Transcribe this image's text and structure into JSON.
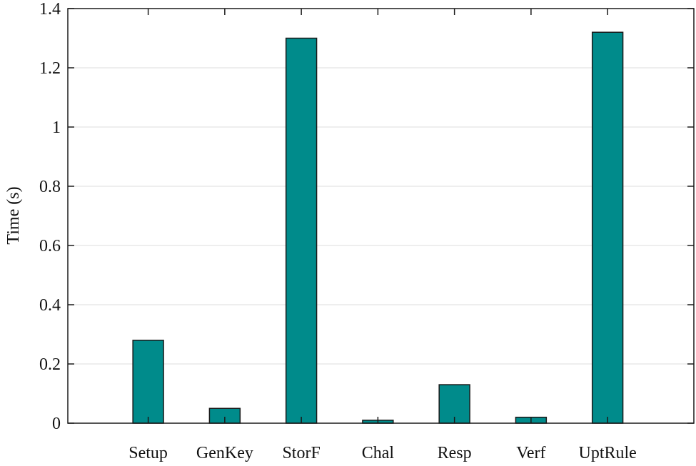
{
  "chart_data": {
    "type": "bar",
    "title": "",
    "xlabel": "",
    "ylabel": "Time (s)",
    "categories": [
      "Setup",
      "GenKey",
      "StorF",
      "Chal",
      "Resp",
      "Verf",
      "UptRule"
    ],
    "values": [
      0.28,
      0.05,
      1.3,
      0.01,
      0.13,
      0.02,
      1.32
    ],
    "ylim": [
      0,
      1.4
    ],
    "yticks": [
      0,
      0.2,
      0.4,
      0.6,
      0.8,
      1,
      1.2,
      1.4
    ],
    "ytick_labels": [
      "0",
      "0.2",
      "0.4",
      "0.6",
      "0.8",
      "1",
      "1.2",
      "1.4"
    ],
    "grid": true,
    "bar_color": "#008b8b",
    "bar_edge_color": "#1a1a1a",
    "grid_color": "#dcdcdc"
  }
}
